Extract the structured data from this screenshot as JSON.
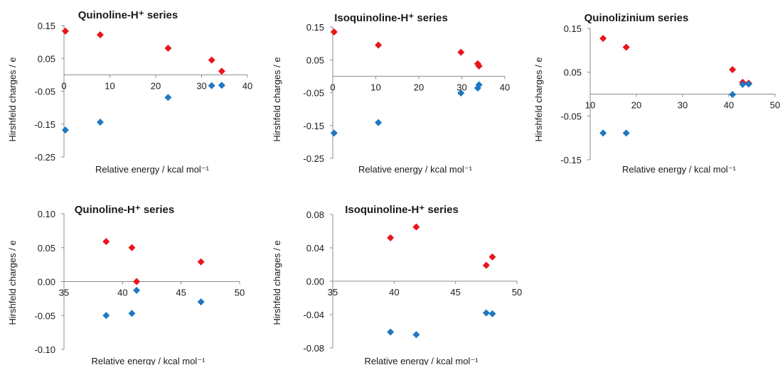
{
  "colors": {
    "series_red": "#e8151b",
    "series_blue": "#1f78c1",
    "axis": "#8c8c8c"
  },
  "chart_data": [
    {
      "type": "scatter",
      "title": "Quinoline-H⁺ series",
      "xlabel": "Relative energy / kcal mol⁻¹",
      "ylabel": "Hirshfeld charges / e",
      "xlim": [
        0,
        40
      ],
      "ylim": [
        -0.25,
        0.15
      ],
      "xticks": [
        "0",
        "10",
        "20",
        "30",
        "40"
      ],
      "yticks": [
        "0.15",
        "0.05",
        "-0.05",
        "-0.15",
        "-0.25"
      ],
      "legend": "none",
      "series": [
        {
          "color": "#e8151b",
          "points": [
            [
              0.3,
              0.133
            ],
            [
              7.9,
              0.122
            ],
            [
              22.7,
              0.081
            ],
            [
              32.2,
              0.045
            ],
            [
              34.4,
              0.011
            ]
          ]
        },
        {
          "color": "#1f78c1",
          "points": [
            [
              0.3,
              -0.168
            ],
            [
              7.9,
              -0.144
            ],
            [
              22.7,
              -0.069
            ],
            [
              32.2,
              -0.033
            ],
            [
              34.4,
              -0.032
            ]
          ]
        }
      ]
    },
    {
      "type": "scatter",
      "title": "Isoquinoline-H⁺ series",
      "xlabel": "Relative energy / kcal mol⁻¹",
      "ylabel": "Hirshfeld charges / e",
      "xlim": [
        0,
        40
      ],
      "ylim": [
        -0.25,
        0.15
      ],
      "xticks": [
        "0",
        "10",
        "20",
        "30",
        "40"
      ],
      "yticks": [
        "0.15",
        "0.05",
        "-0.05",
        "-0.15",
        "-0.25"
      ],
      "legend": "none",
      "series": [
        {
          "color": "#e8151b",
          "points": [
            [
              0.3,
              0.135
            ],
            [
              10.6,
              0.095
            ],
            [
              29.8,
              0.073
            ],
            [
              33.7,
              0.038
            ],
            [
              34.0,
              0.031
            ]
          ]
        },
        {
          "color": "#1f78c1",
          "points": [
            [
              0.3,
              -0.173
            ],
            [
              10.6,
              -0.141
            ],
            [
              29.8,
              -0.051
            ],
            [
              33.7,
              -0.036
            ],
            [
              34.0,
              -0.026
            ]
          ]
        }
      ]
    },
    {
      "type": "scatter",
      "title": "Quinolizinium series",
      "xlabel": "Relative energy / kcal mol⁻¹",
      "ylabel": "Hirshfeld charges / e",
      "xlim": [
        10,
        50
      ],
      "ylim": [
        -0.15,
        0.15
      ],
      "xticks": [
        "10",
        "20",
        "30",
        "40",
        "50"
      ],
      "yticks": [
        "0.15",
        "0.05",
        "-0.05",
        "-0.15"
      ],
      "legend": "none",
      "series": [
        {
          "color": "#e8151b",
          "points": [
            [
              12.8,
              0.127
            ],
            [
              17.8,
              0.107
            ],
            [
              40.8,
              0.056
            ],
            [
              43.0,
              0.027
            ],
            [
              44.3,
              0.025
            ]
          ]
        },
        {
          "color": "#1f78c1",
          "points": [
            [
              12.8,
              -0.089
            ],
            [
              17.8,
              -0.089
            ],
            [
              40.8,
              -0.001
            ],
            [
              43.0,
              0.022
            ],
            [
              44.3,
              0.023
            ]
          ]
        }
      ]
    },
    {
      "type": "scatter",
      "title": "Quinoline-H⁺ series",
      "xlabel": "Relative energy / kcal mol⁻¹",
      "ylabel": "Hirshfeld charges / e",
      "xlim": [
        35,
        50
      ],
      "ylim": [
        -0.1,
        0.1
      ],
      "xticks": [
        "35",
        "40",
        "45",
        "50"
      ],
      "yticks": [
        "0.10",
        "0.05",
        "0.00",
        "-0.05",
        "-0.10"
      ],
      "legend": "none",
      "series": [
        {
          "color": "#e8151b",
          "points": [
            [
              38.6,
              0.059
            ],
            [
              40.8,
              0.05
            ],
            [
              41.2,
              0.0
            ],
            [
              46.7,
              0.029
            ]
          ]
        },
        {
          "color": "#1f78c1",
          "points": [
            [
              38.6,
              -0.05
            ],
            [
              40.8,
              -0.047
            ],
            [
              41.2,
              -0.013
            ],
            [
              46.7,
              -0.03
            ]
          ]
        }
      ]
    },
    {
      "type": "scatter",
      "title": "Isoquinoline-H⁺ series",
      "xlabel": "Relative energy  / kcal mol⁻¹",
      "ylabel": "Hirshfeld charges / e",
      "xlim": [
        35,
        50
      ],
      "ylim": [
        -0.08,
        0.08
      ],
      "xticks": [
        "35",
        "40",
        "45",
        "50"
      ],
      "yticks": [
        "0.08",
        "0.04",
        "0.00",
        "-0.04",
        "-0.08"
      ],
      "legend": "none",
      "series": [
        {
          "color": "#e8151b",
          "points": [
            [
              39.7,
              0.052
            ],
            [
              41.8,
              0.065
            ],
            [
              47.5,
              0.019
            ],
            [
              48.0,
              0.029
            ]
          ]
        },
        {
          "color": "#1f78c1",
          "points": [
            [
              39.7,
              -0.061
            ],
            [
              41.8,
              -0.064
            ],
            [
              47.5,
              -0.038
            ],
            [
              48.0,
              -0.039
            ]
          ]
        }
      ]
    }
  ]
}
